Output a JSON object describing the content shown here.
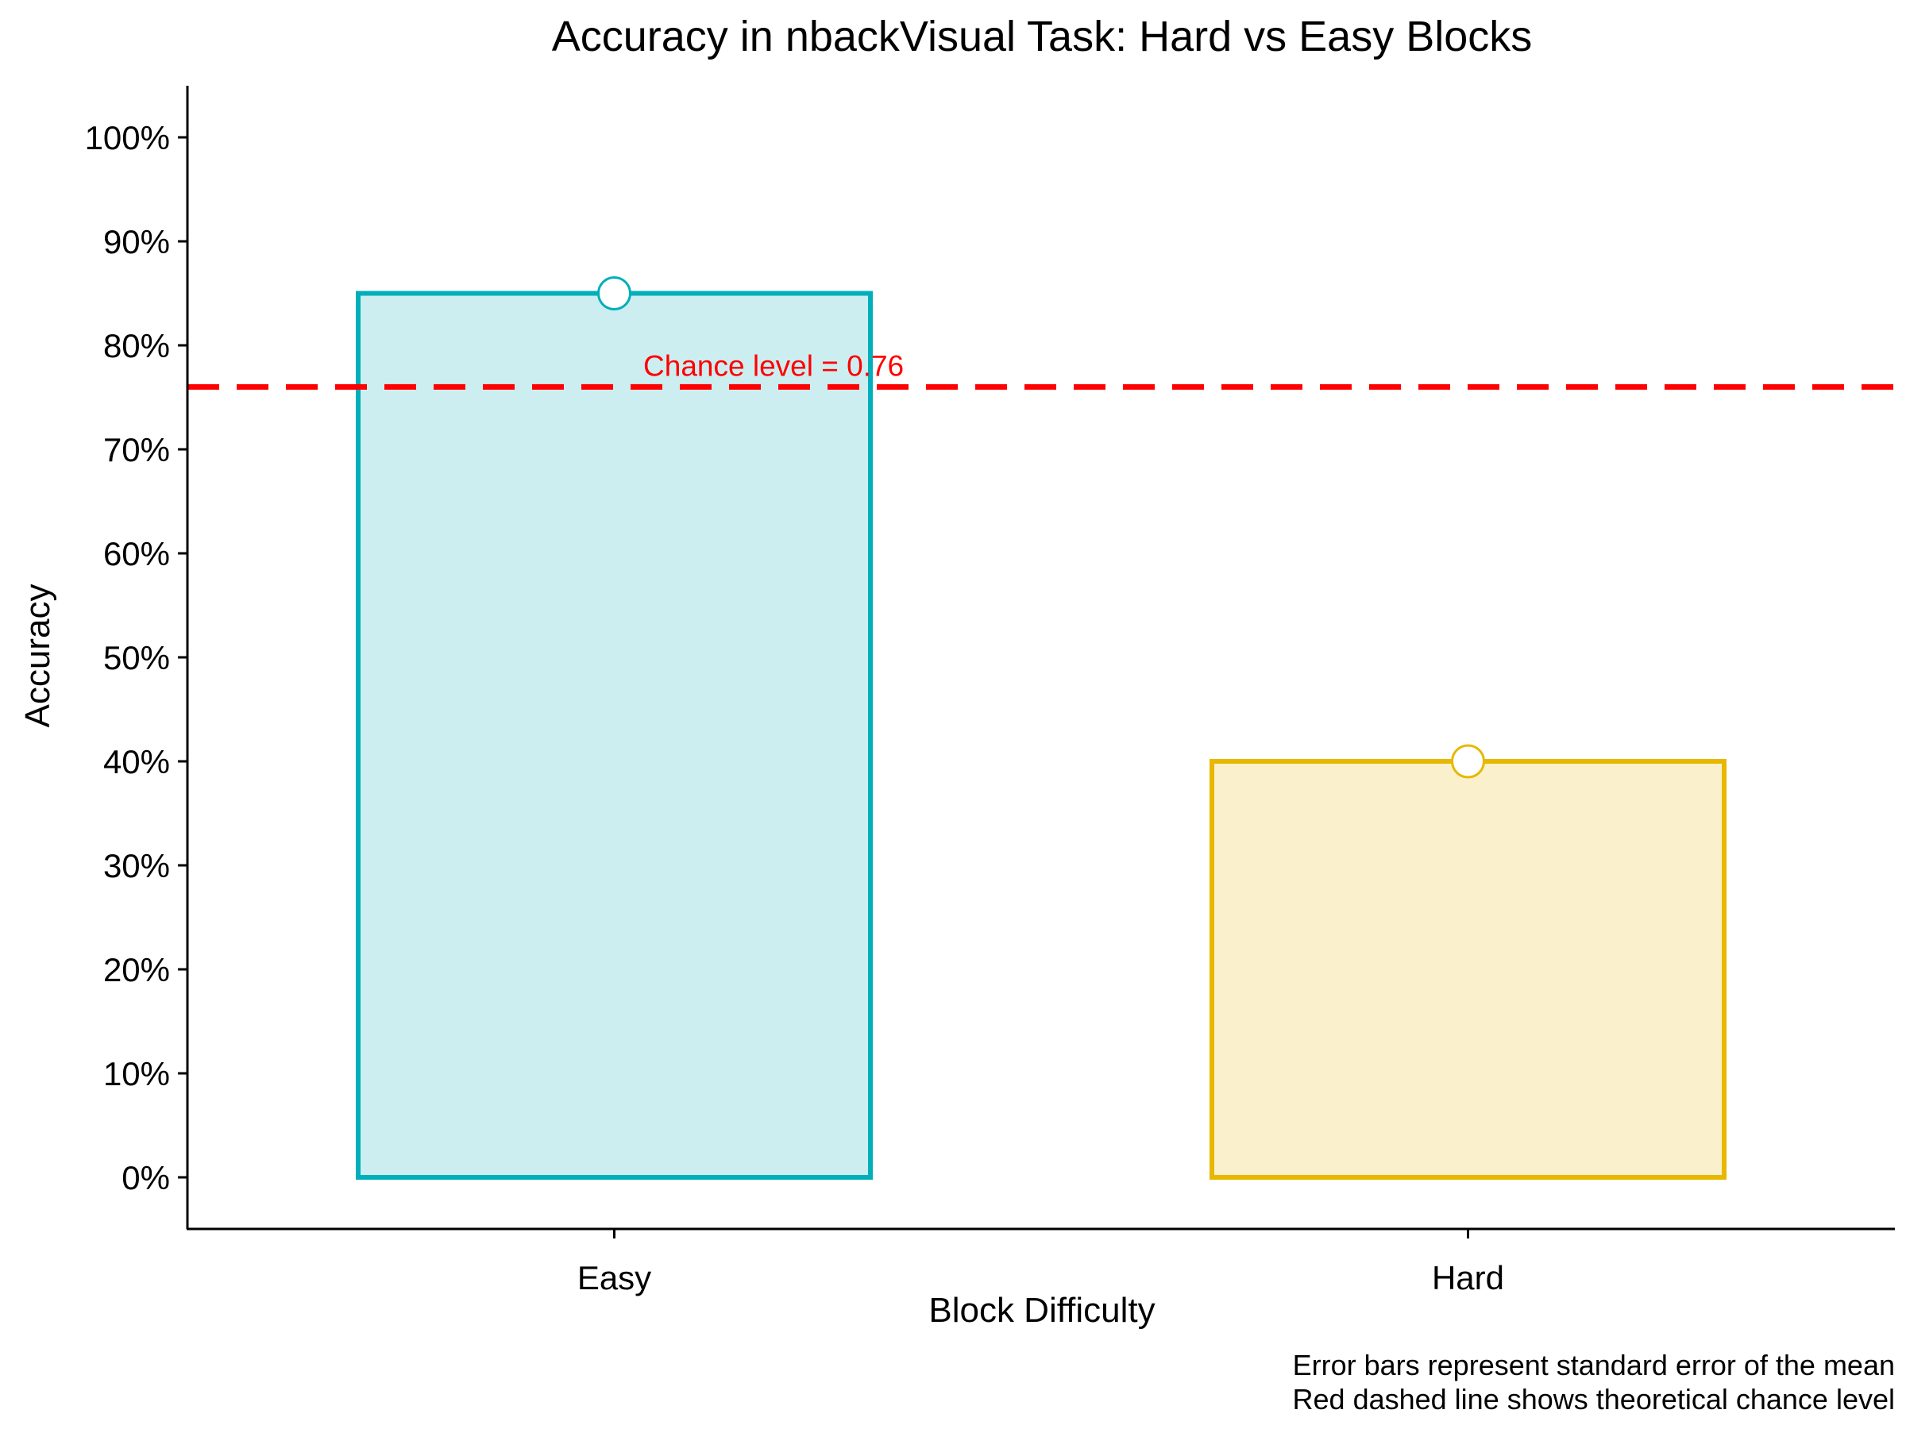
{
  "chart_data": {
    "type": "bar",
    "title": "Accuracy in nbackVisual Task: Hard vs Easy Blocks",
    "xlabel": "Block Difficulty",
    "ylabel": "Accuracy",
    "categories": [
      "Easy",
      "Hard"
    ],
    "values": [
      0.85,
      0.4
    ],
    "ylim": [
      -0.05,
      1.05
    ],
    "yticks": [
      0,
      0.1,
      0.2,
      0.3,
      0.4,
      0.5,
      0.6,
      0.7,
      0.8,
      0.9,
      1.0
    ],
    "ytick_labels": [
      "0%",
      "10%",
      "20%",
      "30%",
      "40%",
      "50%",
      "60%",
      "70%",
      "80%",
      "90%",
      "100%"
    ],
    "bar_colors": [
      "#00AFBB",
      "#E7B800"
    ],
    "bar_fill_colors": [
      "#CCEEF1",
      "#FAF0CC"
    ],
    "reference_line": {
      "value": 0.76,
      "label": "Chance level = 0.76",
      "color": "#FF0000",
      "style": "dashed"
    },
    "caption": [
      "Error bars represent standard error of the mean",
      "Red dashed line shows theoretical chance level"
    ],
    "grid": false,
    "legend": "none"
  }
}
